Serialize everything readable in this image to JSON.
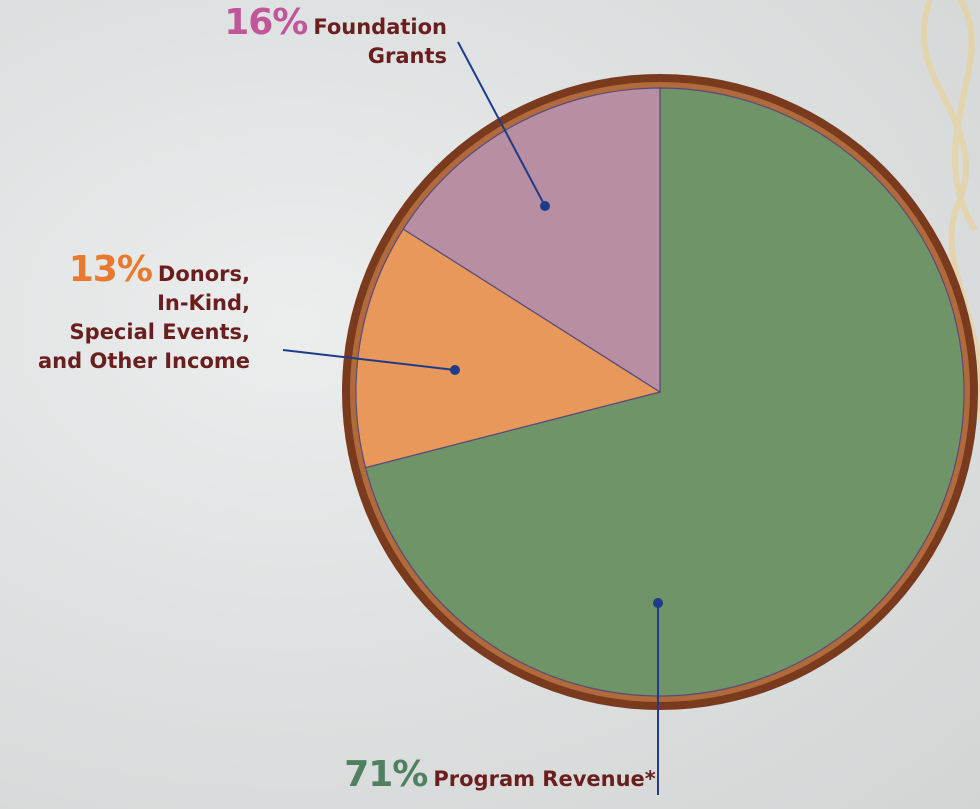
{
  "chart_data": {
    "type": "pie",
    "categories": [
      "Program Revenue*",
      "Donors,\nIn-Kind,\nSpecial Events,\nand Other Income",
      "Foundation\nGrants"
    ],
    "values": [
      71,
      13,
      16
    ],
    "value_labels": [
      "71%",
      "13%",
      "16%"
    ],
    "colors": [
      "#6f9467",
      "#e8985a",
      "#b88ea2"
    ],
    "label_colors": [
      "#4f8160",
      "#e8792f",
      "#c0579a"
    ]
  }
}
